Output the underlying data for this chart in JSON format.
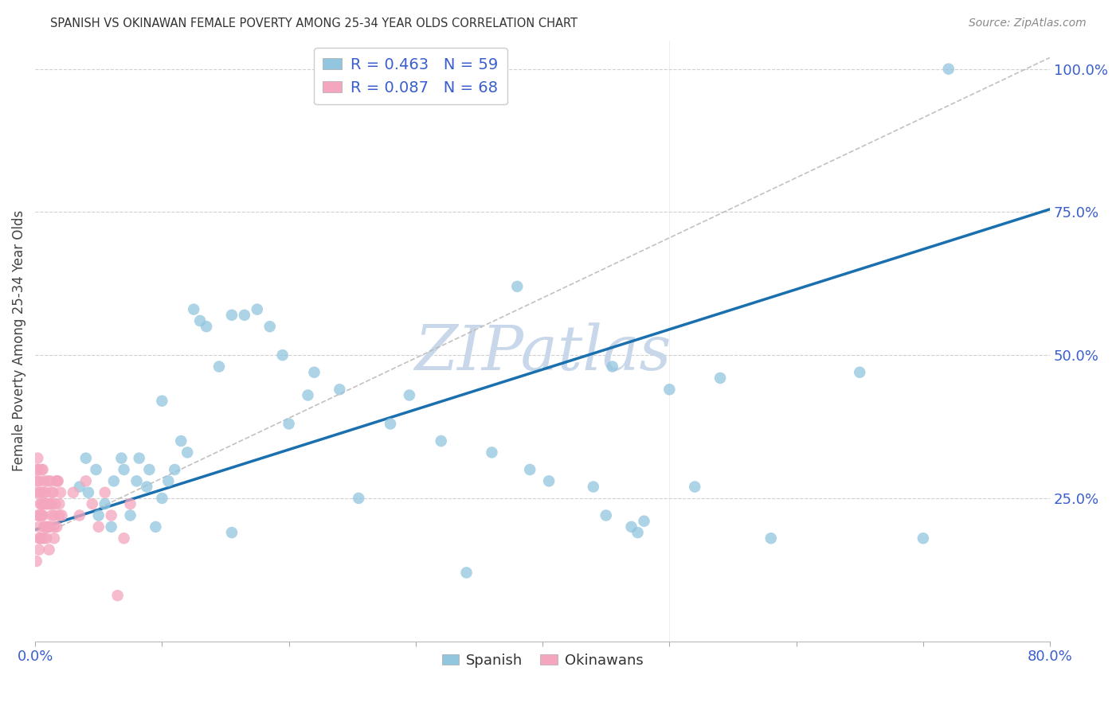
{
  "title": "SPANISH VS OKINAWAN FEMALE POVERTY AMONG 25-34 YEAR OLDS CORRELATION CHART",
  "source": "Source: ZipAtlas.com",
  "ylabel": "Female Poverty Among 25-34 Year Olds",
  "xlim": [
    0.0,
    0.8
  ],
  "ylim": [
    0.0,
    1.05
  ],
  "xticks": [
    0.0,
    0.1,
    0.2,
    0.3,
    0.4,
    0.5,
    0.6,
    0.7,
    0.8
  ],
  "xticklabels": [
    "0.0%",
    "",
    "",
    "",
    "",
    "",
    "",
    "",
    "80.0%"
  ],
  "ytick_positions": [
    0.0,
    0.25,
    0.5,
    0.75,
    1.0
  ],
  "ytick_labels": [
    "",
    "25.0%",
    "50.0%",
    "75.0%",
    "100.0%"
  ],
  "spanish_R": 0.463,
  "spanish_N": 59,
  "okinawan_R": 0.087,
  "okinawan_N": 68,
  "spanish_color": "#92c5de",
  "okinawan_color": "#f4a6be",
  "spanish_line_color": "#1a6faf",
  "okinawan_line_color": "#c8c8c8",
  "watermark": "ZIPatlas",
  "watermark_color": "#c8d8ea",
  "spanish_line_x0": 0.0,
  "spanish_line_y0": 0.195,
  "spanish_line_x1": 0.8,
  "spanish_line_y1": 0.755,
  "okinawan_line_x0": 0.0,
  "okinawan_line_y0": 0.18,
  "okinawan_line_x1": 0.8,
  "okinawan_line_y1": 1.02,
  "spanish_x": [
    0.3,
    0.1,
    0.13,
    0.155,
    0.165,
    0.175,
    0.185,
    0.195,
    0.22,
    0.24,
    0.135,
    0.125,
    0.145,
    0.32,
    0.34,
    0.36,
    0.215,
    0.39,
    0.405,
    0.295,
    0.28,
    0.44,
    0.45,
    0.47,
    0.48,
    0.5,
    0.52,
    0.54,
    0.475,
    0.255,
    0.38,
    0.455,
    0.58,
    0.65,
    0.7,
    0.72,
    0.05,
    0.06,
    0.07,
    0.08,
    0.09,
    0.1,
    0.11,
    0.12,
    0.035,
    0.04,
    0.042,
    0.048,
    0.055,
    0.062,
    0.068,
    0.075,
    0.082,
    0.088,
    0.095,
    0.115,
    0.105,
    0.155,
    0.2
  ],
  "spanish_y": [
    0.95,
    0.42,
    0.56,
    0.57,
    0.57,
    0.58,
    0.55,
    0.5,
    0.47,
    0.44,
    0.55,
    0.58,
    0.48,
    0.35,
    0.12,
    0.33,
    0.43,
    0.3,
    0.28,
    0.43,
    0.38,
    0.27,
    0.22,
    0.2,
    0.21,
    0.44,
    0.27,
    0.46,
    0.19,
    0.25,
    0.62,
    0.48,
    0.18,
    0.47,
    0.18,
    1.0,
    0.22,
    0.2,
    0.3,
    0.28,
    0.3,
    0.25,
    0.3,
    0.33,
    0.27,
    0.32,
    0.26,
    0.3,
    0.24,
    0.28,
    0.32,
    0.22,
    0.32,
    0.27,
    0.2,
    0.35,
    0.28,
    0.19,
    0.38
  ],
  "okinawan_x": [
    0.002,
    0.003,
    0.004,
    0.005,
    0.006,
    0.007,
    0.008,
    0.009,
    0.01,
    0.011,
    0.012,
    0.013,
    0.014,
    0.015,
    0.016,
    0.017,
    0.018,
    0.019,
    0.02,
    0.003,
    0.005,
    0.007,
    0.009,
    0.011,
    0.013,
    0.015,
    0.017,
    0.002,
    0.004,
    0.006,
    0.008,
    0.01,
    0.012,
    0.001,
    0.003,
    0.005,
    0.007,
    0.009,
    0.011,
    0.013,
    0.015,
    0.017,
    0.019,
    0.021,
    0.001,
    0.002,
    0.003,
    0.004,
    0.005,
    0.006,
    0.007,
    0.008,
    0.001,
    0.002,
    0.003,
    0.004,
    0.005,
    0.006,
    0.03,
    0.035,
    0.04,
    0.045,
    0.05,
    0.055,
    0.06,
    0.065,
    0.07,
    0.075
  ],
  "okinawan_y": [
    0.22,
    0.28,
    0.18,
    0.24,
    0.3,
    0.2,
    0.26,
    0.18,
    0.24,
    0.2,
    0.28,
    0.22,
    0.26,
    0.18,
    0.24,
    0.2,
    0.28,
    0.22,
    0.26,
    0.16,
    0.22,
    0.18,
    0.24,
    0.2,
    0.26,
    0.22,
    0.28,
    0.3,
    0.26,
    0.24,
    0.2,
    0.28,
    0.24,
    0.14,
    0.18,
    0.22,
    0.26,
    0.2,
    0.16,
    0.24,
    0.2,
    0.28,
    0.24,
    0.22,
    0.26,
    0.3,
    0.2,
    0.24,
    0.18,
    0.22,
    0.28,
    0.24,
    0.28,
    0.32,
    0.22,
    0.26,
    0.3,
    0.24,
    0.26,
    0.22,
    0.28,
    0.24,
    0.2,
    0.26,
    0.22,
    0.08,
    0.18,
    0.24
  ]
}
